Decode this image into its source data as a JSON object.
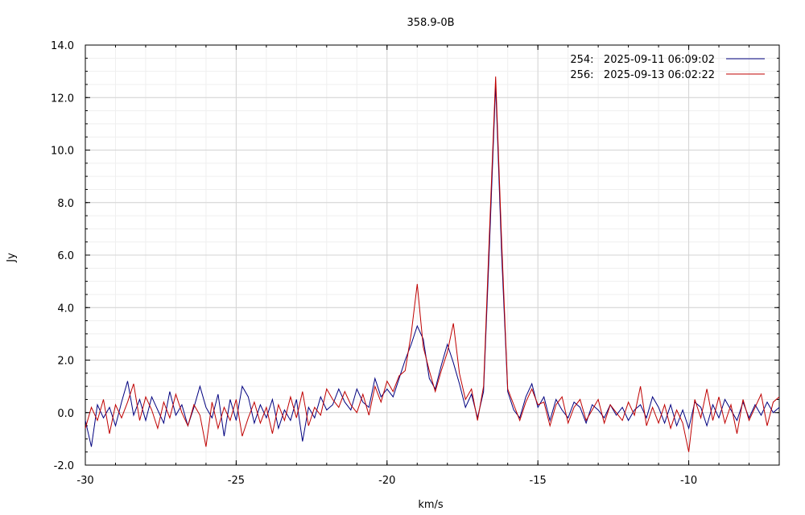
{
  "chart_data": {
    "type": "line",
    "title": "358.9-0B",
    "xlabel": "km/s",
    "ylabel": "Jy",
    "xlim": [
      -30,
      -7
    ],
    "ylim": [
      -2.0,
      14.0
    ],
    "x_ticks": [
      -30,
      -25,
      -20,
      -15,
      -10
    ],
    "x_tick_labels": [
      "-30",
      "-25",
      "-20",
      "-15",
      "-10"
    ],
    "y_ticks": [
      -2,
      0,
      2,
      4,
      6,
      8,
      10,
      12,
      14
    ],
    "y_tick_labels": [
      "-2.0",
      "0.0",
      "2.0",
      "4.0",
      "6.0",
      "8.0",
      "10.0",
      "12.0",
      "14.0"
    ],
    "grid": true,
    "legend_position": "top-right",
    "series": [
      {
        "name": "254:   2025-09-11 06:09:02",
        "color": "#00007f",
        "x": [
          -30.0,
          -29.8,
          -29.6,
          -29.4,
          -29.2,
          -29.0,
          -28.8,
          -28.6,
          -28.4,
          -28.2,
          -28.0,
          -27.8,
          -27.6,
          -27.4,
          -27.2,
          -27.0,
          -26.8,
          -26.6,
          -26.4,
          -26.2,
          -26.0,
          -25.8,
          -25.6,
          -25.4,
          -25.2,
          -25.0,
          -24.8,
          -24.6,
          -24.4,
          -24.2,
          -24.0,
          -23.8,
          -23.6,
          -23.4,
          -23.2,
          -23.0,
          -22.8,
          -22.6,
          -22.4,
          -22.2,
          -22.0,
          -21.8,
          -21.6,
          -21.4,
          -21.2,
          -21.0,
          -20.8,
          -20.6,
          -20.4,
          -20.2,
          -20.0,
          -19.8,
          -19.6,
          -19.4,
          -19.2,
          -19.0,
          -18.8,
          -18.6,
          -18.4,
          -18.2,
          -18.0,
          -17.8,
          -17.6,
          -17.4,
          -17.2,
          -17.0,
          -16.8,
          -16.6,
          -16.4,
          -16.2,
          -16.0,
          -15.8,
          -15.6,
          -15.4,
          -15.2,
          -15.0,
          -14.8,
          -14.6,
          -14.4,
          -14.2,
          -14.0,
          -13.8,
          -13.6,
          -13.4,
          -13.2,
          -13.0,
          -12.8,
          -12.6,
          -12.4,
          -12.2,
          -12.0,
          -11.8,
          -11.6,
          -11.4,
          -11.2,
          -11.0,
          -10.8,
          -10.6,
          -10.4,
          -10.2,
          -10.0,
          -9.8,
          -9.6,
          -9.4,
          -9.2,
          -9.0,
          -8.8,
          -8.6,
          -8.4,
          -8.2,
          -8.0,
          -7.8,
          -7.6,
          -7.4,
          -7.2,
          -7.0
        ],
        "y": [
          -0.3,
          -1.3,
          0.3,
          -0.2,
          0.2,
          -0.5,
          0.4,
          1.2,
          -0.1,
          0.5,
          -0.3,
          0.6,
          0.1,
          -0.4,
          0.8,
          -0.1,
          0.3,
          -0.5,
          0.2,
          1.0,
          0.2,
          -0.2,
          0.7,
          -0.9,
          0.5,
          -0.3,
          1.0,
          0.6,
          -0.4,
          0.3,
          -0.2,
          0.5,
          -0.6,
          0.1,
          -0.3,
          0.5,
          -1.1,
          0.2,
          -0.2,
          0.6,
          0.1,
          0.3,
          0.9,
          0.4,
          0.1,
          0.9,
          0.4,
          0.2,
          1.3,
          0.6,
          0.9,
          0.6,
          1.3,
          2.0,
          2.6,
          3.3,
          2.8,
          1.3,
          0.9,
          1.8,
          2.6,
          1.9,
          1.1,
          0.2,
          0.7,
          -0.2,
          0.8,
          6.5,
          12.5,
          6.0,
          0.8,
          0.1,
          -0.2,
          0.6,
          1.1,
          0.2,
          0.6,
          -0.3,
          0.5,
          0.1,
          -0.2,
          0.4,
          0.2,
          -0.4,
          0.3,
          0.1,
          -0.2,
          0.3,
          -0.1,
          0.2,
          -0.3,
          0.1,
          0.3,
          -0.2,
          0.6,
          0.2,
          -0.4,
          0.3,
          -0.5,
          0.1,
          -0.6,
          0.4,
          0.2,
          -0.5,
          0.3,
          -0.2,
          0.5,
          0.1,
          -0.3,
          0.4,
          -0.2,
          0.3,
          -0.1,
          0.4,
          0.0,
          0.2
        ]
      },
      {
        "name": "256:   2025-09-13 06:02:22",
        "color": "#bf0000",
        "x": [
          -30.0,
          -29.8,
          -29.6,
          -29.4,
          -29.2,
          -29.0,
          -28.8,
          -28.6,
          -28.4,
          -28.2,
          -28.0,
          -27.8,
          -27.6,
          -27.4,
          -27.2,
          -27.0,
          -26.8,
          -26.6,
          -26.4,
          -26.2,
          -26.0,
          -25.8,
          -25.6,
          -25.4,
          -25.2,
          -25.0,
          -24.8,
          -24.6,
          -24.4,
          -24.2,
          -24.0,
          -23.8,
          -23.6,
          -23.4,
          -23.2,
          -23.0,
          -22.8,
          -22.6,
          -22.4,
          -22.2,
          -22.0,
          -21.8,
          -21.6,
          -21.4,
          -21.2,
          -21.0,
          -20.8,
          -20.6,
          -20.4,
          -20.2,
          -20.0,
          -19.8,
          -19.6,
          -19.4,
          -19.2,
          -19.0,
          -18.8,
          -18.6,
          -18.4,
          -18.2,
          -18.0,
          -17.8,
          -17.6,
          -17.4,
          -17.2,
          -17.0,
          -16.8,
          -16.6,
          -16.4,
          -16.2,
          -16.0,
          -15.8,
          -15.6,
          -15.4,
          -15.2,
          -15.0,
          -14.8,
          -14.6,
          -14.4,
          -14.2,
          -14.0,
          -13.8,
          -13.6,
          -13.4,
          -13.2,
          -13.0,
          -12.8,
          -12.6,
          -12.4,
          -12.2,
          -12.0,
          -11.8,
          -11.6,
          -11.4,
          -11.2,
          -11.0,
          -10.8,
          -10.6,
          -10.4,
          -10.2,
          -10.0,
          -9.8,
          -9.6,
          -9.4,
          -9.2,
          -9.0,
          -8.8,
          -8.6,
          -8.4,
          -8.2,
          -8.0,
          -7.8,
          -7.6,
          -7.4,
          -7.2,
          -7.0
        ],
        "y": [
          -0.6,
          0.2,
          -0.3,
          0.5,
          -0.8,
          0.3,
          -0.2,
          0.4,
          1.1,
          -0.3,
          0.6,
          0.1,
          -0.6,
          0.4,
          -0.2,
          0.7,
          0.0,
          -0.5,
          0.3,
          -0.1,
          -1.3,
          0.4,
          -0.6,
          0.2,
          -0.3,
          0.5,
          -0.9,
          -0.2,
          0.4,
          -0.4,
          0.2,
          -0.8,
          0.3,
          -0.3,
          0.6,
          -0.2,
          0.8,
          -0.5,
          0.2,
          -0.1,
          0.9,
          0.5,
          0.2,
          0.8,
          0.3,
          0.0,
          0.7,
          -0.1,
          1.0,
          0.4,
          1.2,
          0.8,
          1.4,
          1.6,
          3.0,
          4.9,
          2.5,
          1.6,
          0.8,
          1.6,
          2.3,
          3.4,
          1.5,
          0.5,
          0.9,
          -0.3,
          1.0,
          7.0,
          12.8,
          6.5,
          0.9,
          0.3,
          -0.3,
          0.4,
          0.9,
          0.3,
          0.4,
          -0.5,
          0.3,
          0.6,
          -0.4,
          0.2,
          0.5,
          -0.3,
          0.1,
          0.5,
          -0.4,
          0.3,
          0.0,
          -0.3,
          0.4,
          -0.1,
          1.0,
          -0.5,
          0.2,
          -0.4,
          0.3,
          -0.6,
          0.1,
          -0.4,
          -1.5,
          0.5,
          -0.2,
          0.9,
          -0.3,
          0.6,
          -0.4,
          0.3,
          -0.8,
          0.5,
          -0.3,
          0.2,
          0.7,
          -0.5,
          0.4,
          0.6
        ]
      }
    ]
  }
}
